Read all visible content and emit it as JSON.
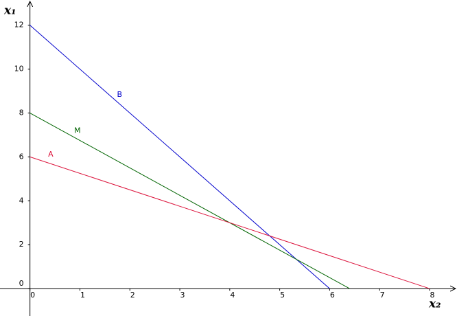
{
  "chart_data": {
    "type": "line",
    "x_label": "x₂",
    "y_label": "x₁",
    "series": [
      {
        "name": "B",
        "color": "#0000cc",
        "x": [
          0,
          6
        ],
        "values": [
          12,
          0
        ]
      },
      {
        "name": "M",
        "color": "#006400",
        "x": [
          0,
          6.4
        ],
        "values": [
          8,
          0
        ]
      },
      {
        "name": "A",
        "color": "#dc143c",
        "x": [
          0,
          8
        ],
        "values": [
          6,
          0
        ]
      }
    ],
    "xlim": [
      -0.6,
      8.55
    ],
    "ylim": [
      -1.25,
      13.15
    ],
    "xticks": [
      0,
      1,
      2,
      3,
      4,
      5,
      6,
      7,
      8
    ],
    "yticks": [
      0,
      2,
      4,
      6,
      8,
      10,
      12
    ],
    "grid": false
  }
}
